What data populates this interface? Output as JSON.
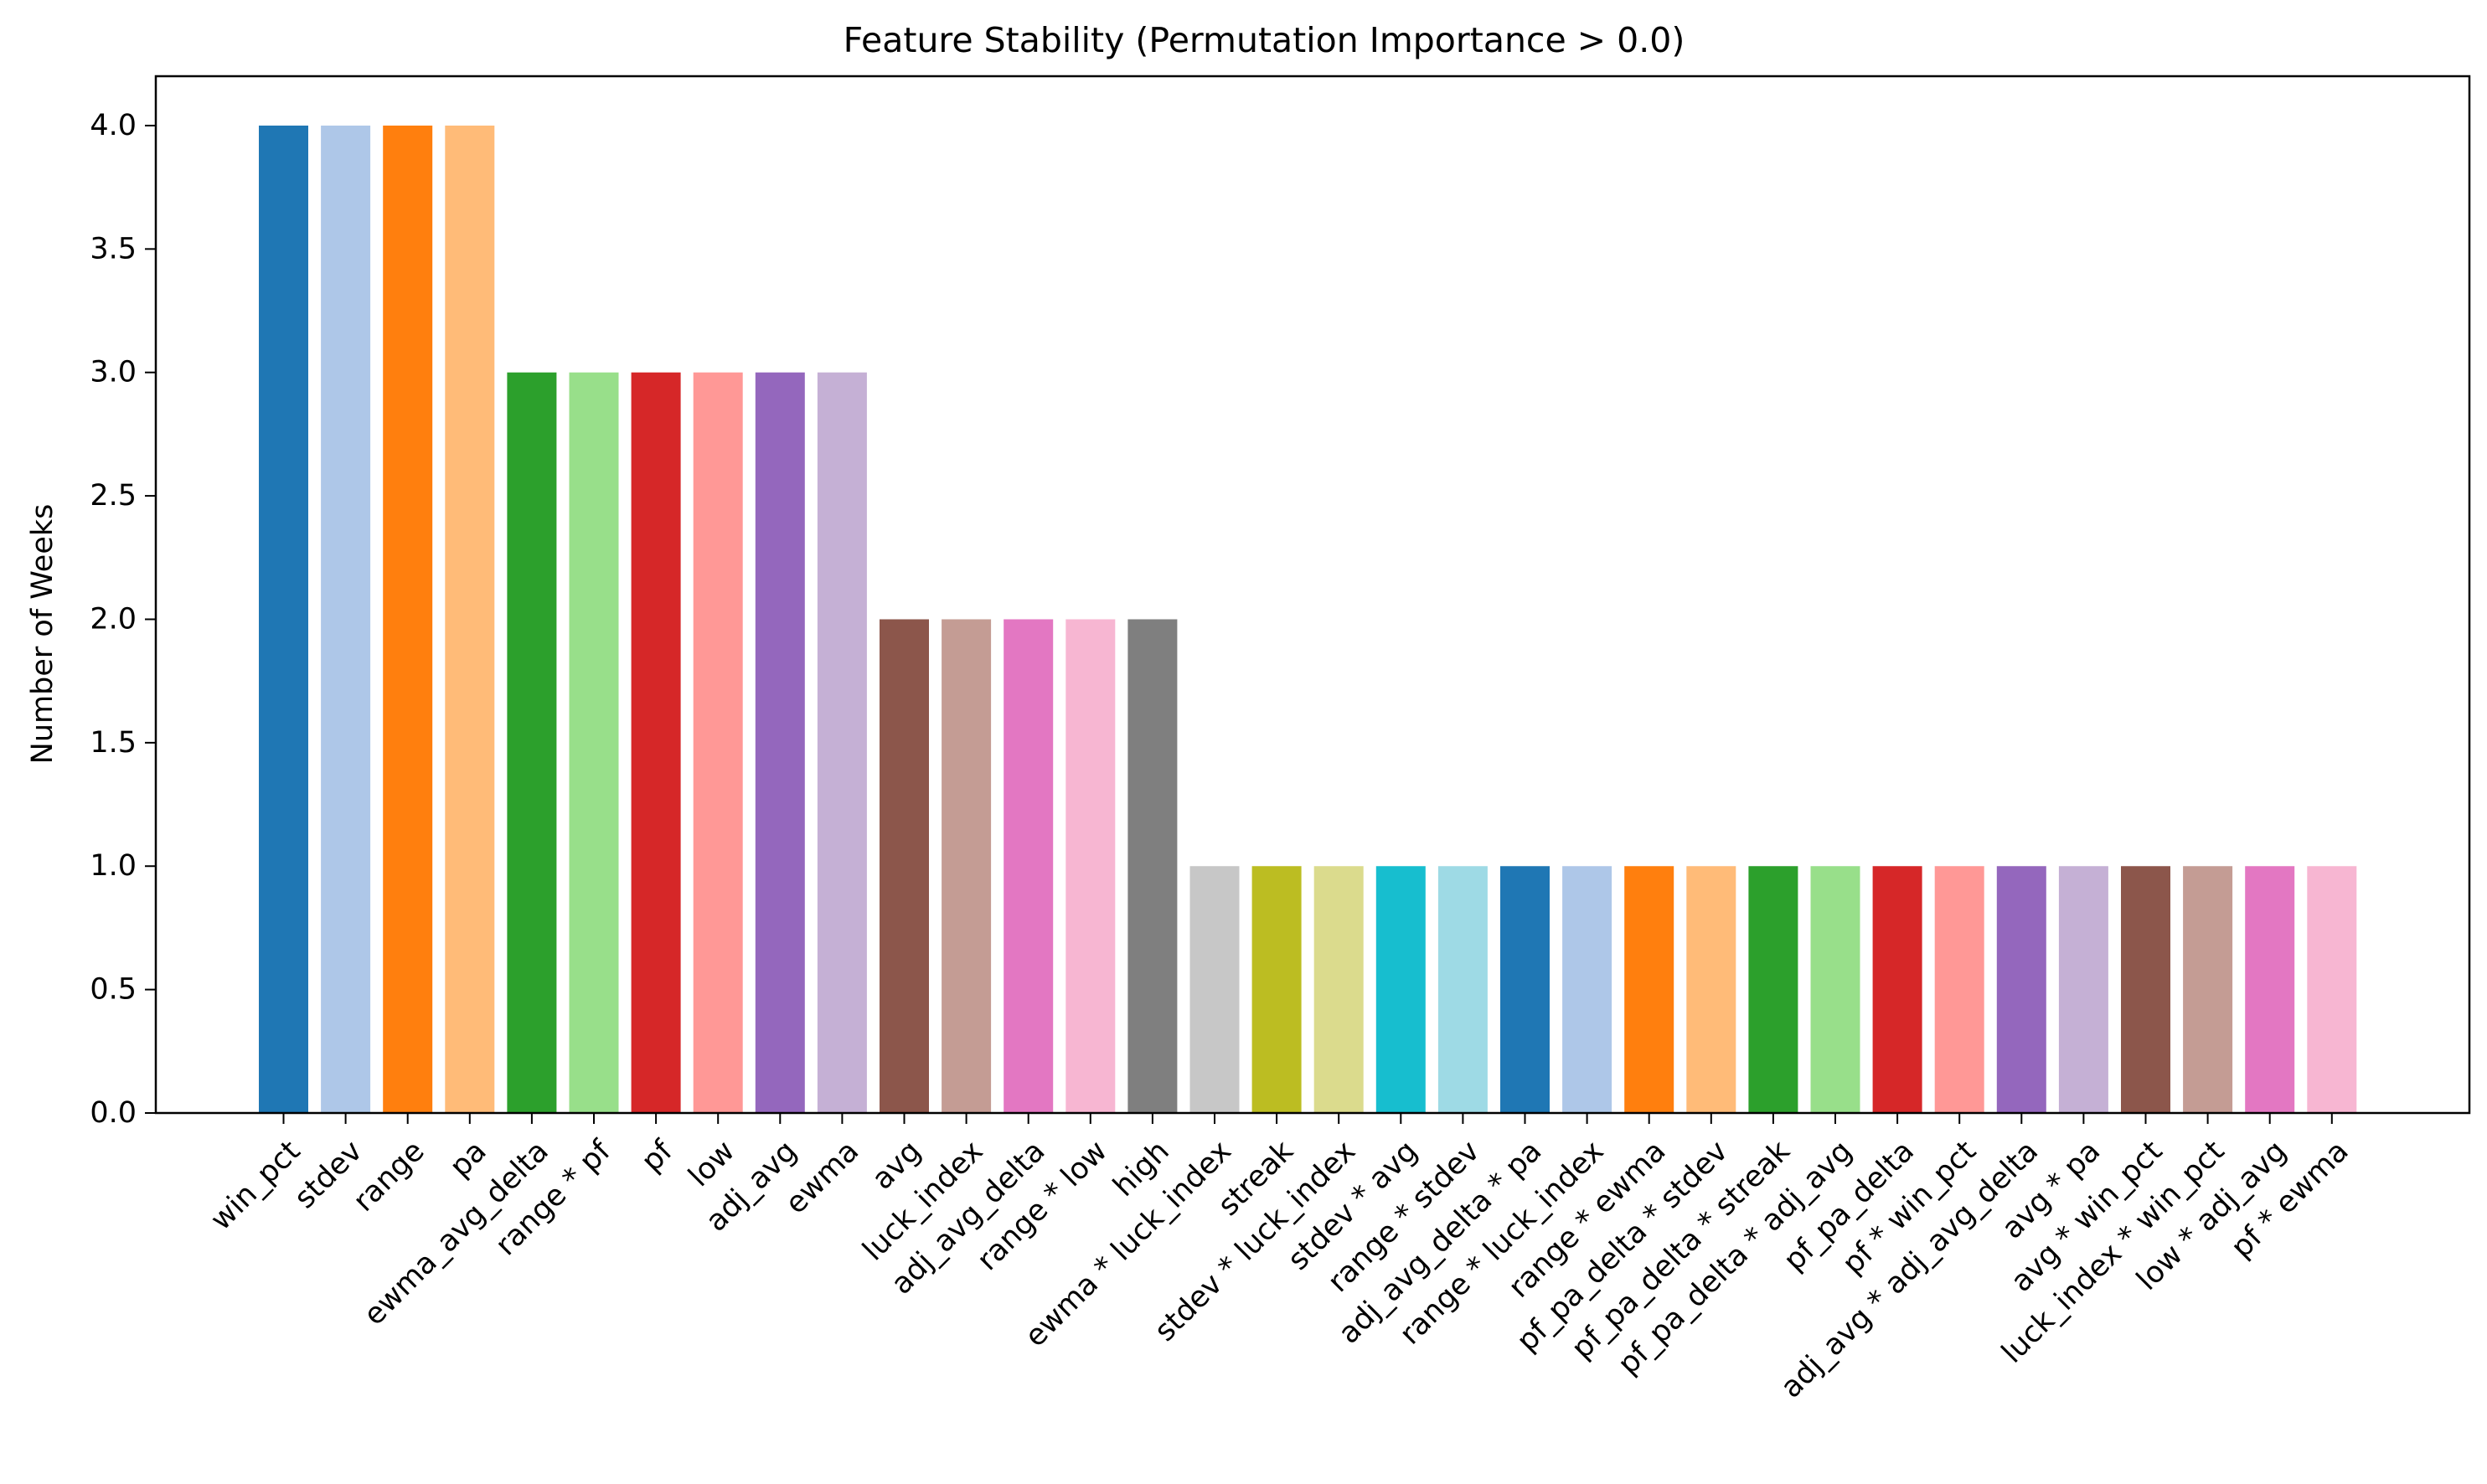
{
  "chart_data": {
    "type": "bar",
    "title": "Feature Stability (Permutation Importance > 0.0)",
    "xlabel": "",
    "ylabel": "Number of Weeks",
    "ylim": [
      0,
      4.2
    ],
    "yticks": [
      "0.0",
      "0.5",
      "1.0",
      "1.5",
      "2.0",
      "2.5",
      "3.0",
      "3.5",
      "4.0"
    ],
    "ytick_values": [
      0,
      0.5,
      1,
      1.5,
      2,
      2.5,
      3,
      3.5,
      4
    ],
    "grid": false,
    "legend": "none",
    "categories": [
      "win_pct",
      "stdev",
      "range",
      "pa",
      "ewma_avg_delta",
      "range * pf",
      "pf",
      "low",
      "adj_avg",
      "ewma",
      "avg",
      "luck_index",
      "adj_avg_delta",
      "range * low",
      "high",
      "ewma * luck_index",
      "streak",
      "stdev * luck_index",
      "stdev * avg",
      "range * stdev",
      "adj_avg_delta * pa",
      "range * luck_index",
      "range * ewma",
      "pf_pa_delta * stdev",
      "pf_pa_delta * streak",
      "pf_pa_delta * adj_avg",
      "pf_pa_delta",
      "pf * win_pct",
      "adj_avg * adj_avg_delta",
      "avg * pa",
      "avg * win_pct",
      "luck_index * win_pct",
      "low * adj_avg",
      "pf * ewma"
    ],
    "values": [
      4,
      4,
      4,
      4,
      3,
      3,
      3,
      3,
      3,
      3,
      2,
      2,
      2,
      2,
      2,
      1,
      1,
      1,
      1,
      1,
      1,
      1,
      1,
      1,
      1,
      1,
      1,
      1,
      1,
      1,
      1,
      1,
      1,
      1
    ],
    "colors": [
      "#1f77b4",
      "#aec7e8",
      "#ff7f0e",
      "#ffbb78",
      "#2ca02c",
      "#98df8a",
      "#d62728",
      "#ff9896",
      "#9467bd",
      "#c5b0d5",
      "#8c564b",
      "#c49c94",
      "#e377c2",
      "#f7b6d2",
      "#7f7f7f",
      "#c7c7c7",
      "#bcbd22",
      "#dbdb8d",
      "#17becf",
      "#9edae5",
      "#1f77b4",
      "#aec7e8",
      "#ff7f0e",
      "#ffbb78",
      "#2ca02c",
      "#98df8a",
      "#d62728",
      "#ff9896",
      "#9467bd",
      "#c5b0d5",
      "#8c564b",
      "#c49c94",
      "#e377c2",
      "#f7b6d2"
    ]
  }
}
